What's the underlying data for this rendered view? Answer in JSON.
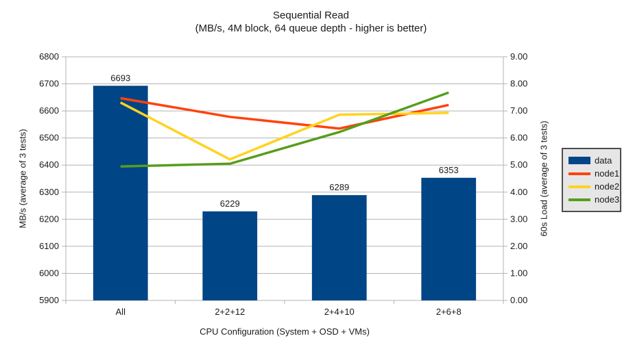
{
  "title": "Sequential Read",
  "subtitle": "(MB/s, 4M block, 64 queue depth - higher is better)",
  "colors": {
    "bar": "#004586",
    "node1": "#FF420E",
    "node2": "#FFD320",
    "node3": "#579D1C",
    "grid": "#b3b3b3",
    "axis": "#b3b3b3",
    "text": "#1a1a1a",
    "legend_bg": "#e6e6e6",
    "legend_border": "#4d4d4d",
    "background": "#ffffff"
  },
  "chart_data": {
    "type": "bar+line combo",
    "categories": [
      "All",
      "2+2+12",
      "2+4+10",
      "2+6+8"
    ],
    "bar_series": {
      "name": "data",
      "axis": "left",
      "values": [
        6693,
        6229,
        6289,
        6353
      ],
      "data_labels": [
        "6693",
        "6229",
        "6289",
        "6353"
      ]
    },
    "line_series": [
      {
        "name": "node1",
        "axis": "right",
        "values": [
          7.47,
          6.78,
          6.35,
          7.22
        ]
      },
      {
        "name": "node2",
        "axis": "right",
        "values": [
          7.31,
          5.21,
          6.86,
          6.93
        ]
      },
      {
        "name": "node3",
        "axis": "right",
        "values": [
          4.95,
          5.05,
          6.22,
          7.68
        ]
      }
    ],
    "left_axis": {
      "label": "MB/s (average of 3 tests)",
      "min": 5900,
      "max": 6800,
      "step": 100
    },
    "right_axis": {
      "label": "60s Load (average of 3 tests)",
      "min": 0,
      "max": 9,
      "step": 1,
      "decimals": 2
    },
    "x_axis": {
      "label": "CPU Configuration (System + OSD + VMs)"
    },
    "legend": [
      "data",
      "node1",
      "node2",
      "node3"
    ],
    "grid": "horizontal gridlines on, every 100 MB/s (= every 1.00 load)",
    "legend_position": "right, outside plot"
  }
}
